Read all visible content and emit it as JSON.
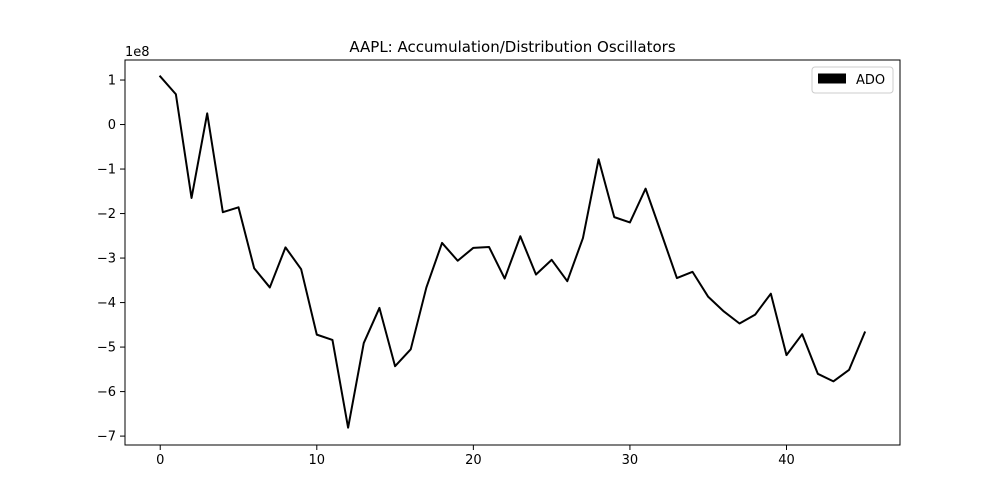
{
  "chart_data": {
    "type": "line",
    "title": "AAPL: Accumulation/Distribution Oscillators",
    "xlabel": "",
    "ylabel": "",
    "y_scale_label": "1e8",
    "xlim": [
      -2.25,
      47.25
    ],
    "ylim": [
      -7.2,
      1.45
    ],
    "x_ticks": [
      0,
      10,
      20,
      30,
      40
    ],
    "y_ticks": [
      1,
      0,
      -1,
      -2,
      -3,
      -4,
      -5,
      -6,
      -7
    ],
    "y_tick_labels": [
      "1",
      "0",
      "−1",
      "−2",
      "−3",
      "−4",
      "−5",
      "−6",
      "−7"
    ],
    "grid": false,
    "legend_position": "top-right",
    "series": [
      {
        "name": "ADO",
        "color": "#000000",
        "x": [
          0,
          1,
          2,
          3,
          4,
          5,
          6,
          7,
          8,
          9,
          10,
          11,
          12,
          13,
          14,
          15,
          16,
          17,
          18,
          19,
          20,
          21,
          22,
          23,
          24,
          25,
          26,
          27,
          28,
          29,
          30,
          31,
          32,
          33,
          34,
          35,
          36,
          37,
          38,
          39,
          40,
          41,
          42,
          43,
          44,
          45
        ],
        "values": [
          1.08,
          0.68,
          -1.65,
          0.25,
          -1.97,
          -1.86,
          -3.23,
          -3.66,
          -2.76,
          -3.25,
          -4.72,
          -4.84,
          -6.81,
          -4.91,
          -4.12,
          -5.43,
          -5.05,
          -3.66,
          -2.66,
          -3.06,
          -2.77,
          -2.75,
          -3.46,
          -2.51,
          -3.37,
          -3.04,
          -3.52,
          -2.55,
          -0.78,
          -2.08,
          -2.2,
          -1.44,
          -2.44,
          -3.45,
          -3.31,
          -3.87,
          -4.2,
          -4.47,
          -4.27,
          -3.8,
          -5.18,
          -4.71,
          -5.6,
          -5.77,
          -5.51,
          -4.67
        ]
      }
    ]
  }
}
